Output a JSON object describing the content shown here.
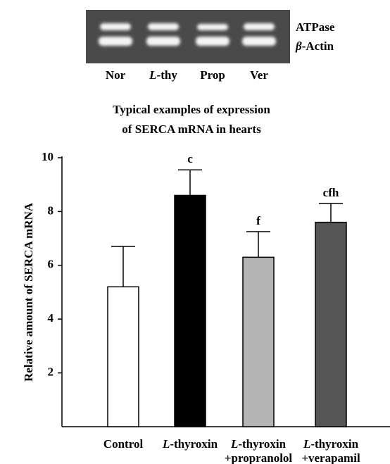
{
  "gel": {
    "bands": [
      "ATPase",
      "β-Actin"
    ],
    "lanes": [
      "Nor",
      "L-thy",
      "Prop",
      "Ver"
    ],
    "caption": [
      "Typical examples of expression",
      "of SERCA mRNA in hearts"
    ]
  },
  "chart_data": {
    "type": "bar",
    "y_label": "Relative amount of SERCA mRNA",
    "categories": [
      "Control",
      "L-thyroxin",
      "L-thyroxin\n+propranolol",
      "L-thyroxin\n+verapamil"
    ],
    "values": [
      5.2,
      8.6,
      6.3,
      7.6
    ],
    "errors": [
      1.5,
      0.95,
      0.95,
      0.7
    ],
    "significance": [
      null,
      "c",
      "f",
      "cfh"
    ],
    "colors": [
      "#ffffff",
      "#000000",
      "#b4b4b4",
      "#555555"
    ],
    "ylim": [
      0,
      10
    ],
    "yticks": [
      2,
      4,
      6,
      8,
      10
    ]
  }
}
